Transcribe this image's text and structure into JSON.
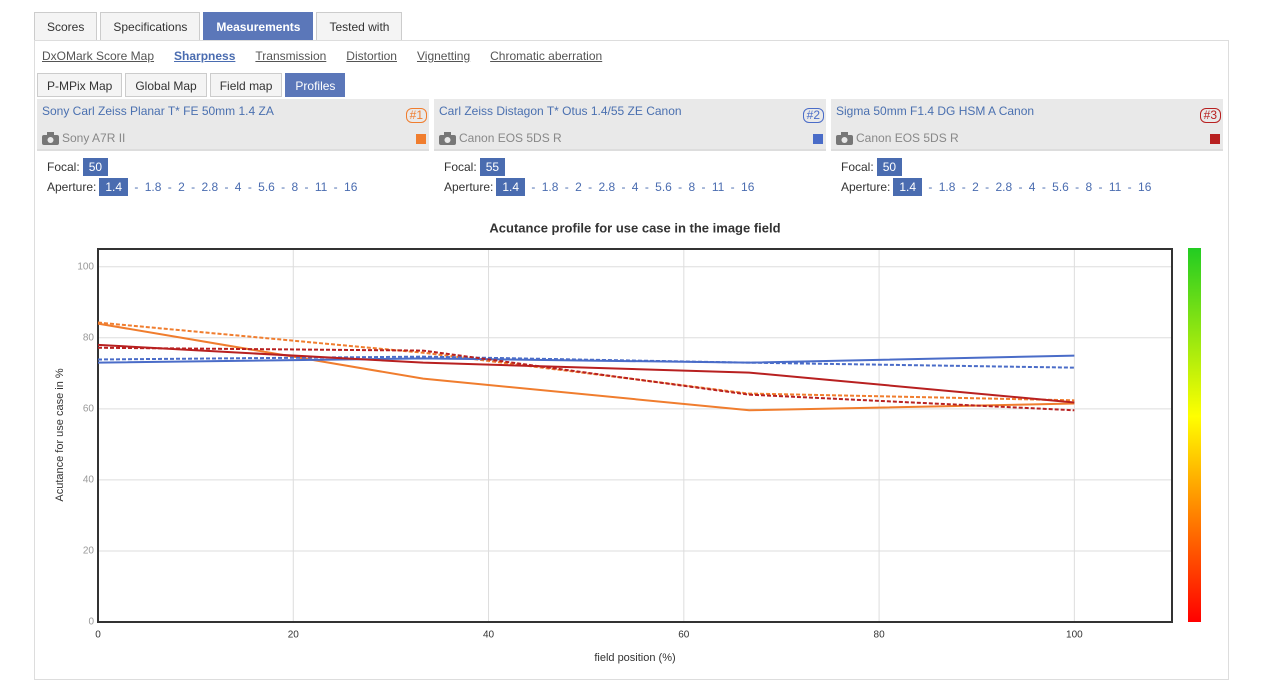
{
  "tabs": [
    {
      "label": "Scores",
      "active": false
    },
    {
      "label": "Specifications",
      "active": false
    },
    {
      "label": "Measurements",
      "active": true
    },
    {
      "label": "Tested with",
      "active": false
    }
  ],
  "subnav": [
    {
      "label": "DxOMark Score Map",
      "active": false
    },
    {
      "label": "Sharpness",
      "active": true
    },
    {
      "label": "Transmission",
      "active": false
    },
    {
      "label": "Distortion",
      "active": false
    },
    {
      "label": "Vignetting",
      "active": false
    },
    {
      "label": "Chromatic aberration",
      "active": false
    }
  ],
  "views": [
    {
      "label": "P-MPix Map",
      "active": false
    },
    {
      "label": "Global Map",
      "active": false
    },
    {
      "label": "Field map",
      "active": false
    },
    {
      "label": "Profiles",
      "active": true
    }
  ],
  "lenses": [
    {
      "name": "Sony Carl Zeiss Planar T* FE 50mm 1.4 ZA",
      "rank": "#1",
      "camera": "Sony A7R II",
      "color": "#f07d2e",
      "focal_label": "Focal:",
      "focal": 50,
      "aperture_label": "Aperture:",
      "apertures": [
        1.4,
        1.8,
        2,
        2.8,
        4,
        5.6,
        8,
        11,
        16
      ],
      "aperture_selected": 0
    },
    {
      "name": "Carl Zeiss Distagon T* Otus 1.4/55 ZE Canon",
      "rank": "#2",
      "camera": "Canon EOS 5DS R",
      "color": "#4a6cc8",
      "focal_label": "Focal:",
      "focal": 55,
      "aperture_label": "Aperture:",
      "apertures": [
        1.4,
        1.8,
        2,
        2.8,
        4,
        5.6,
        8,
        11,
        16
      ],
      "aperture_selected": 0
    },
    {
      "name": "Sigma 50mm F1.4 DG HSM A Canon",
      "rank": "#3",
      "camera": "Canon EOS 5DS R",
      "color": "#b82020",
      "focal_label": "Focal:",
      "focal": 50,
      "aperture_label": "Aperture:",
      "apertures": [
        1.4,
        1.8,
        2,
        2.8,
        4,
        5.6,
        8,
        11,
        16
      ],
      "aperture_selected": 0
    }
  ],
  "chart_data": {
    "type": "line",
    "title": "Acutance profile for use case in the image field",
    "x_label": "field position (%)",
    "y_label": "Acutance for use case in %",
    "x": [
      0,
      33.3,
      66.7,
      100
    ],
    "xlim": [
      0,
      110
    ],
    "xticks": [
      0,
      20,
      40,
      60,
      80,
      100
    ],
    "ylim": [
      0,
      105
    ],
    "yticks": [
      0,
      20,
      40,
      60,
      80,
      100
    ],
    "grid": true,
    "series": [
      {
        "color": "#f07d2e",
        "dashed": false,
        "values": [
          84,
          68.5,
          59.6,
          61.5
        ]
      },
      {
        "color": "#f07d2e",
        "dashed": true,
        "values": [
          84.3,
          75.8,
          64.3,
          62.4
        ]
      },
      {
        "color": "#4a6cc8",
        "dashed": false,
        "values": [
          73,
          74.2,
          73,
          75
        ]
      },
      {
        "color": "#4a6cc8",
        "dashed": true,
        "values": [
          73.9,
          74.7,
          73,
          71.6
        ]
      },
      {
        "color": "#b82020",
        "dashed": false,
        "values": [
          78,
          73,
          70.2,
          61.8
        ]
      },
      {
        "color": "#b82020",
        "dashed": true,
        "values": [
          77.2,
          76.4,
          64,
          59.6
        ]
      }
    ]
  }
}
